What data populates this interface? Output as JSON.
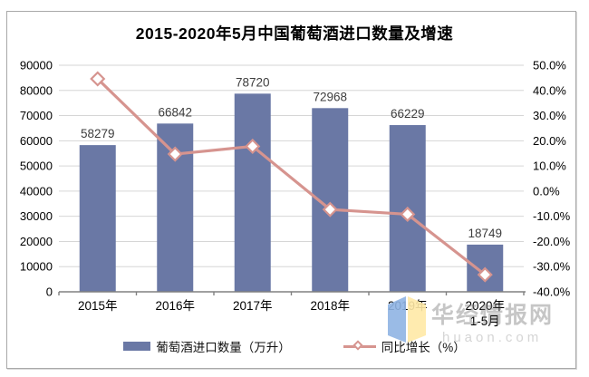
{
  "title": "2015-2020年5月中国葡萄酒进口数量及增速",
  "chart_data": {
    "type": "bar",
    "subtype": "bar-line-combo",
    "title": "2015-2020年5月中国葡萄酒进口数量及增速",
    "categories": [
      "2015年",
      "2016年",
      "2017年",
      "2018年",
      "2019年",
      "2020年"
    ],
    "category_sublabels": [
      "",
      "",
      "",
      "",
      "",
      "1-5月"
    ],
    "series": [
      {
        "name": "葡萄酒进口数量（万升）",
        "type": "bar",
        "axis": "left",
        "values": [
          58279,
          66842,
          78720,
          72968,
          66229,
          18749
        ],
        "color": "#6a78a5"
      },
      {
        "name": "同比增长（%）",
        "type": "line",
        "axis": "right",
        "values": [
          44.6,
          14.7,
          17.8,
          -7.3,
          -9.2,
          -33.2
        ],
        "color": "#d6948f",
        "marker": "open-diamond",
        "marker_fill": "#ffffff"
      }
    ],
    "left_axis": {
      "min": 0,
      "max": 90000,
      "ticks": [
        "90000",
        "80000",
        "70000",
        "60000",
        "50000",
        "40000",
        "30000",
        "20000",
        "10000",
        "0"
      ]
    },
    "right_axis": {
      "min": -40,
      "max": 50,
      "ticks": [
        "50.0%",
        "40.0%",
        "30.0%",
        "20.0%",
        "10.0%",
        "0.0%",
        "-10.0%",
        "-20.0%",
        "-30.0%",
        "-40.0%"
      ]
    },
    "grid": true,
    "grid_color": "#d6d6d6",
    "axis_line_color": "#808080",
    "label_color": "#3d3d3d",
    "legend_position": "bottom"
  },
  "legend": {
    "bar_label": "葡萄酒进口数量（万升）",
    "line_label": "同比增长（%）"
  },
  "watermark": {
    "name": "华经情报网",
    "domain": "huaon.com",
    "logo_blue": "#8fb4e3",
    "logo_yellow": "#ffe9a6"
  }
}
